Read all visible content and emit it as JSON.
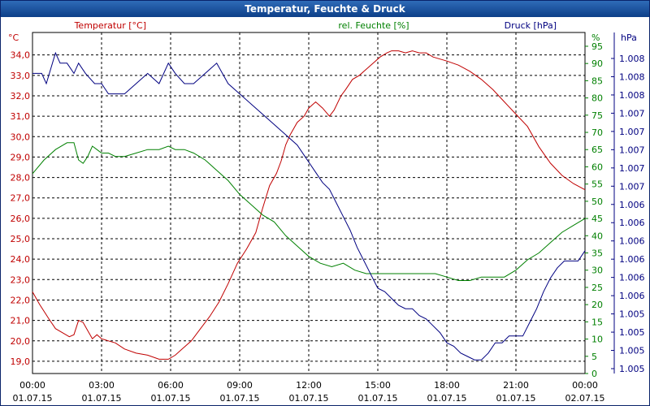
{
  "title": "Temperatur, Feuchte & Druck",
  "chart_data": {
    "type": "line",
    "title": "Temperatur, Feuchte & Druck",
    "grid": true,
    "x_ticks": [
      {
        "time": "00:00",
        "date": "01.07.15"
      },
      {
        "time": "03:00",
        "date": "01.07.15"
      },
      {
        "time": "06:00",
        "date": "01.07.15"
      },
      {
        "time": "09:00",
        "date": "01.07.15"
      },
      {
        "time": "12:00",
        "date": "01.07.15"
      },
      {
        "time": "15:00",
        "date": "01.07.15"
      },
      {
        "time": "18:00",
        "date": "01.07.15"
      },
      {
        "time": "21:00",
        "date": "01.07.15"
      },
      {
        "time": "00:00",
        "date": "02.07.15"
      }
    ],
    "x_unit": "hours",
    "xlim": [
      0,
      24
    ],
    "axes": {
      "temperature": {
        "label": "Temperatur [°C]",
        "unit": "°C",
        "color": "#c00000",
        "ylim": [
          18.4,
          35.1
        ],
        "ticks": [
          "19,0",
          "20,0",
          "21,0",
          "22,0",
          "23,0",
          "24,0",
          "25,0",
          "26,0",
          "27,0",
          "28,0",
          "29,0",
          "30,0",
          "31,0",
          "32,0",
          "33,0",
          "34,0"
        ]
      },
      "humidity": {
        "label": "rel. Feuchte [%]",
        "unit": "%",
        "color": "#008000",
        "ylim": [
          0,
          99
        ],
        "ticks": [
          "0",
          "5",
          "10",
          "15",
          "20",
          "25",
          "30",
          "35",
          "40",
          "45",
          "50",
          "55",
          "60",
          "65",
          "70",
          "75",
          "80",
          "85",
          "90",
          "95"
        ]
      },
      "pressure": {
        "label": "Druck [hPa]",
        "unit": "hPa",
        "color": "#000080",
        "ylim": [
          0,
          1
        ],
        "ticks": [
          "1.005",
          "1.005",
          "1.005",
          "1.005",
          "1.006",
          "1.006",
          "1.006",
          "1.006",
          "1.006",
          "1.006",
          "1.007",
          "1.007",
          "1.007",
          "1.007",
          "1.007",
          "1.008",
          "1.008",
          "1.008"
        ]
      }
    },
    "series": [
      {
        "name": "Temperatur [°C]",
        "axis": "temperature",
        "color": "#c00000",
        "x": [
          0,
          0.3,
          0.7,
          1.0,
          1.3,
          1.6,
          1.8,
          2.0,
          2.2,
          2.4,
          2.6,
          2.8,
          3.0,
          3.3,
          3.6,
          4.0,
          4.5,
          5.0,
          5.5,
          5.9,
          6.2,
          6.5,
          6.9,
          7.3,
          7.7,
          8.1,
          8.5,
          8.9,
          9.3,
          9.7,
          10.0,
          10.3,
          10.6,
          10.8,
          11.0,
          11.2,
          11.5,
          11.8,
          12.0,
          12.3,
          12.6,
          12.9,
          13.1,
          13.4,
          13.6,
          13.9,
          14.2,
          14.5,
          14.8,
          15.1,
          15.4,
          15.6,
          15.9,
          16.2,
          16.5,
          16.8,
          17.1,
          17.4,
          17.7,
          18.0,
          18.5,
          19.0,
          19.5,
          20.0,
          20.5,
          21.0,
          21.5,
          22.0,
          22.5,
          23.0,
          23.5,
          24.0
        ],
        "values": [
          22.4,
          21.8,
          21.1,
          20.6,
          20.4,
          20.2,
          20.3,
          21.0,
          20.9,
          20.5,
          20.1,
          20.3,
          20.1,
          20.0,
          19.9,
          19.6,
          19.4,
          19.3,
          19.1,
          19.1,
          19.3,
          19.6,
          20.0,
          20.6,
          21.2,
          21.9,
          22.8,
          23.8,
          24.5,
          25.3,
          26.5,
          27.6,
          28.2,
          28.8,
          29.6,
          30.1,
          30.7,
          31.0,
          31.4,
          31.7,
          31.4,
          31.0,
          31.3,
          32.0,
          32.3,
          32.8,
          33.0,
          33.3,
          33.6,
          33.9,
          34.1,
          34.2,
          34.2,
          34.1,
          34.2,
          34.1,
          34.1,
          33.9,
          33.8,
          33.7,
          33.5,
          33.2,
          32.8,
          32.3,
          31.7,
          31.1,
          30.5,
          29.5,
          28.7,
          28.1,
          27.7,
          27.4
        ]
      },
      {
        "name": "rel. Feuchte [%]",
        "axis": "humidity",
        "color": "#008000",
        "x": [
          0,
          0.5,
          1.0,
          1.5,
          1.8,
          2.0,
          2.2,
          2.4,
          2.6,
          2.8,
          3.0,
          3.3,
          3.6,
          4.0,
          4.5,
          5.0,
          5.5,
          5.9,
          6.2,
          6.6,
          7.0,
          7.5,
          8.0,
          8.5,
          9.0,
          9.5,
          10.0,
          10.5,
          11.0,
          11.5,
          12.0,
          12.5,
          13.0,
          13.5,
          14.0,
          14.5,
          15.0,
          15.5,
          16.0,
          16.5,
          17.0,
          17.5,
          18.0,
          18.5,
          19.0,
          19.5,
          20.0,
          20.5,
          21.0,
          21.5,
          22.0,
          22.5,
          23.0,
          23.5,
          24.0
        ],
        "values": [
          58,
          62,
          65,
          67,
          67,
          62,
          61,
          63,
          66,
          65,
          64,
          64,
          63,
          63,
          64,
          65,
          65,
          66,
          65,
          65,
          64,
          62,
          59,
          56,
          52,
          49,
          46,
          44,
          40,
          37,
          34,
          32,
          31,
          32,
          30,
          29,
          29,
          29,
          29,
          29,
          29,
          29,
          28,
          27,
          27,
          28,
          28,
          28,
          30,
          33,
          35,
          38,
          41,
          43,
          45
        ]
      },
      {
        "name": "Druck [hPa]",
        "axis": "pressure",
        "color": "#000080",
        "x": [
          0,
          0.4,
          0.6,
          1.0,
          1.2,
          1.5,
          1.8,
          2.0,
          2.3,
          2.7,
          3.0,
          3.3,
          3.6,
          4.0,
          4.5,
          5.0,
          5.5,
          5.9,
          6.2,
          6.6,
          7.0,
          7.5,
          8.0,
          8.5,
          9.0,
          9.5,
          10.0,
          10.5,
          11.0,
          11.5,
          11.8,
          12.0,
          12.3,
          12.6,
          12.9,
          13.2,
          13.5,
          13.8,
          14.1,
          14.4,
          14.7,
          15.0,
          15.3,
          15.6,
          15.9,
          16.2,
          16.5,
          16.8,
          17.1,
          17.4,
          17.7,
          18.0,
          18.3,
          18.6,
          18.9,
          19.2,
          19.5,
          19.8,
          20.1,
          20.4,
          20.7,
          21.0,
          21.3,
          21.6,
          21.9,
          22.2,
          22.5,
          22.8,
          23.1,
          23.4,
          23.7,
          24.0
        ],
        "values": [
          0.88,
          0.88,
          0.85,
          0.94,
          0.91,
          0.91,
          0.88,
          0.91,
          0.88,
          0.85,
          0.85,
          0.82,
          0.82,
          0.82,
          0.85,
          0.88,
          0.85,
          0.91,
          0.88,
          0.85,
          0.85,
          0.88,
          0.91,
          0.85,
          0.82,
          0.79,
          0.76,
          0.73,
          0.7,
          0.67,
          0.64,
          0.62,
          0.59,
          0.56,
          0.54,
          0.5,
          0.46,
          0.42,
          0.37,
          0.33,
          0.29,
          0.25,
          0.24,
          0.22,
          0.2,
          0.19,
          0.19,
          0.17,
          0.16,
          0.14,
          0.12,
          0.09,
          0.08,
          0.06,
          0.05,
          0.04,
          0.04,
          0.06,
          0.09,
          0.09,
          0.11,
          0.11,
          0.11,
          0.15,
          0.19,
          0.24,
          0.28,
          0.31,
          0.33,
          0.33,
          0.33,
          0.36
        ]
      }
    ]
  }
}
